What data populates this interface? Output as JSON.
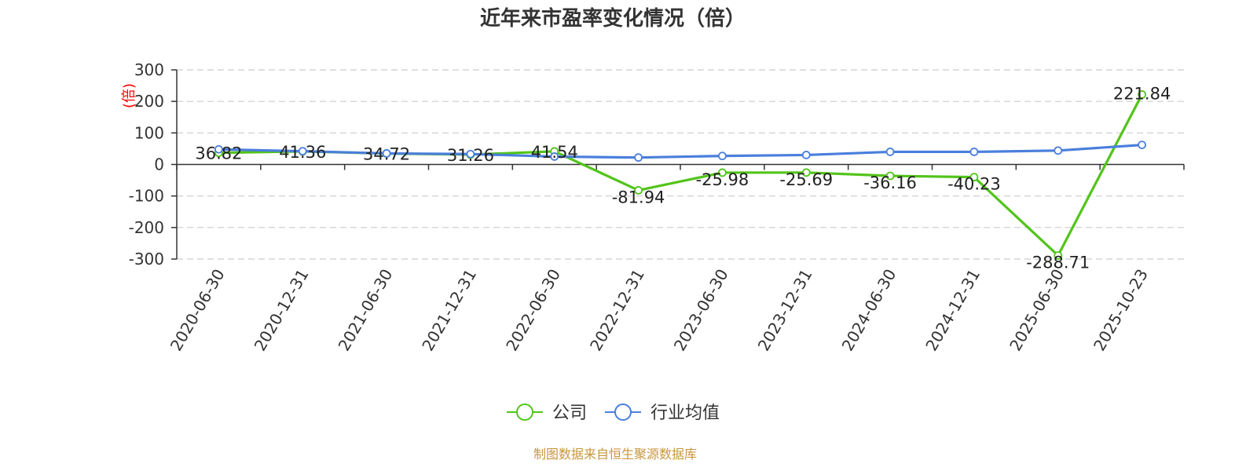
{
  "chart_data": {
    "type": "line",
    "title": "近年来市盈率变化情况（倍）",
    "ylabel": "(倍)",
    "xlabel": "",
    "categories": [
      "2020-06-30",
      "2020-12-31",
      "2021-06-30",
      "2021-12-31",
      "2022-06-30",
      "2022-12-31",
      "2023-06-30",
      "2023-12-31",
      "2024-06-30",
      "2024-12-31",
      "2025-06-30",
      "2025-10-23"
    ],
    "yticks": [
      300,
      200,
      100,
      0,
      -100,
      -200,
      -300
    ],
    "ylim": [
      -300,
      300
    ],
    "grid": true,
    "legend_position": "bottom",
    "series": [
      {
        "name": "公司",
        "color": "#52c41a",
        "values": [
          36.82,
          41.36,
          34.72,
          31.26,
          41.54,
          -81.94,
          -25.98,
          -25.69,
          -36.16,
          -40.23,
          -288.71,
          221.84
        ],
        "labels": [
          "36.82",
          "41.36",
          "34.72",
          "31.26",
          "41.54",
          "-81.94",
          "-25.98",
          "-25.69",
          "-36.16",
          "-40.23",
          "-288.71",
          "221.84"
        ]
      },
      {
        "name": "行业均值",
        "color": "#4a7fdc",
        "values": [
          48,
          42,
          35,
          33,
          25,
          22,
          27,
          30,
          40,
          40,
          44,
          62
        ]
      }
    ],
    "source": "制图数据来自恒生聚源数据库"
  }
}
